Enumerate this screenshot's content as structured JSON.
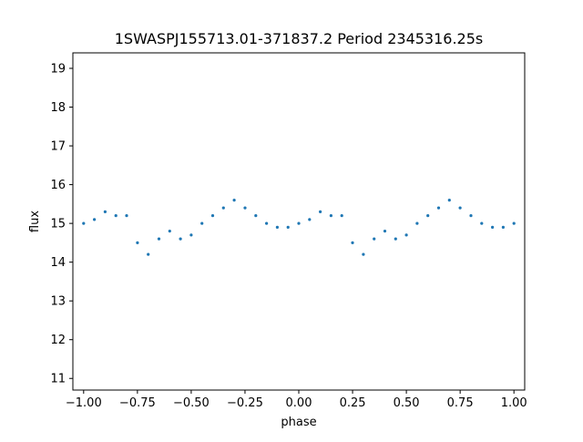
{
  "chart_data": {
    "type": "scatter",
    "title": "1SWASPJ155713.01-371837.2 Period 2345316.25s",
    "xlabel": "phase",
    "ylabel": "flux",
    "xlim": [
      -1.05,
      1.05
    ],
    "ylim": [
      10.7,
      19.4
    ],
    "xticks": [
      -1.0,
      -0.75,
      -0.5,
      -0.25,
      0.0,
      0.25,
      0.5,
      0.75,
      1.0
    ],
    "xtick_labels": [
      "−1.00",
      "−0.75",
      "−0.50",
      "−0.25",
      "0.00",
      "0.25",
      "0.50",
      "0.75",
      "1.00"
    ],
    "yticks": [
      11,
      12,
      13,
      14,
      15,
      16,
      17,
      18,
      19
    ],
    "ytick_labels": [
      "11",
      "12",
      "13",
      "14",
      "15",
      "16",
      "17",
      "18",
      "19"
    ],
    "grid": false,
    "legend": "none",
    "marker_color": "#1f77b4",
    "series": [
      {
        "x": [
          -1.0,
          -0.95,
          -0.9,
          -0.85,
          -0.8,
          -0.75,
          -0.7,
          -0.65,
          -0.6,
          -0.55,
          -0.5,
          -0.45,
          -0.4,
          -0.35,
          -0.3,
          -0.25,
          -0.2,
          -0.15,
          -0.1,
          -0.05,
          0.0,
          0.05,
          0.1,
          0.15,
          0.2,
          0.25,
          0.3,
          0.35,
          0.4,
          0.45,
          0.5,
          0.55,
          0.6,
          0.65,
          0.7,
          0.75,
          0.8,
          0.85,
          0.9,
          0.95,
          1.0
        ],
        "y": [
          15.0,
          15.1,
          15.3,
          15.2,
          15.2,
          14.5,
          14.2,
          14.6,
          14.8,
          14.6,
          14.7,
          15.0,
          15.2,
          15.4,
          15.6,
          15.4,
          15.2,
          15.0,
          14.9,
          14.9,
          15.0,
          15.1,
          15.3,
          15.2,
          15.2,
          14.5,
          14.2,
          14.6,
          14.8,
          14.6,
          14.7,
          15.0,
          15.2,
          15.4,
          15.6,
          15.4,
          15.2,
          15.0,
          14.9,
          14.9,
          15.0
        ]
      }
    ]
  }
}
